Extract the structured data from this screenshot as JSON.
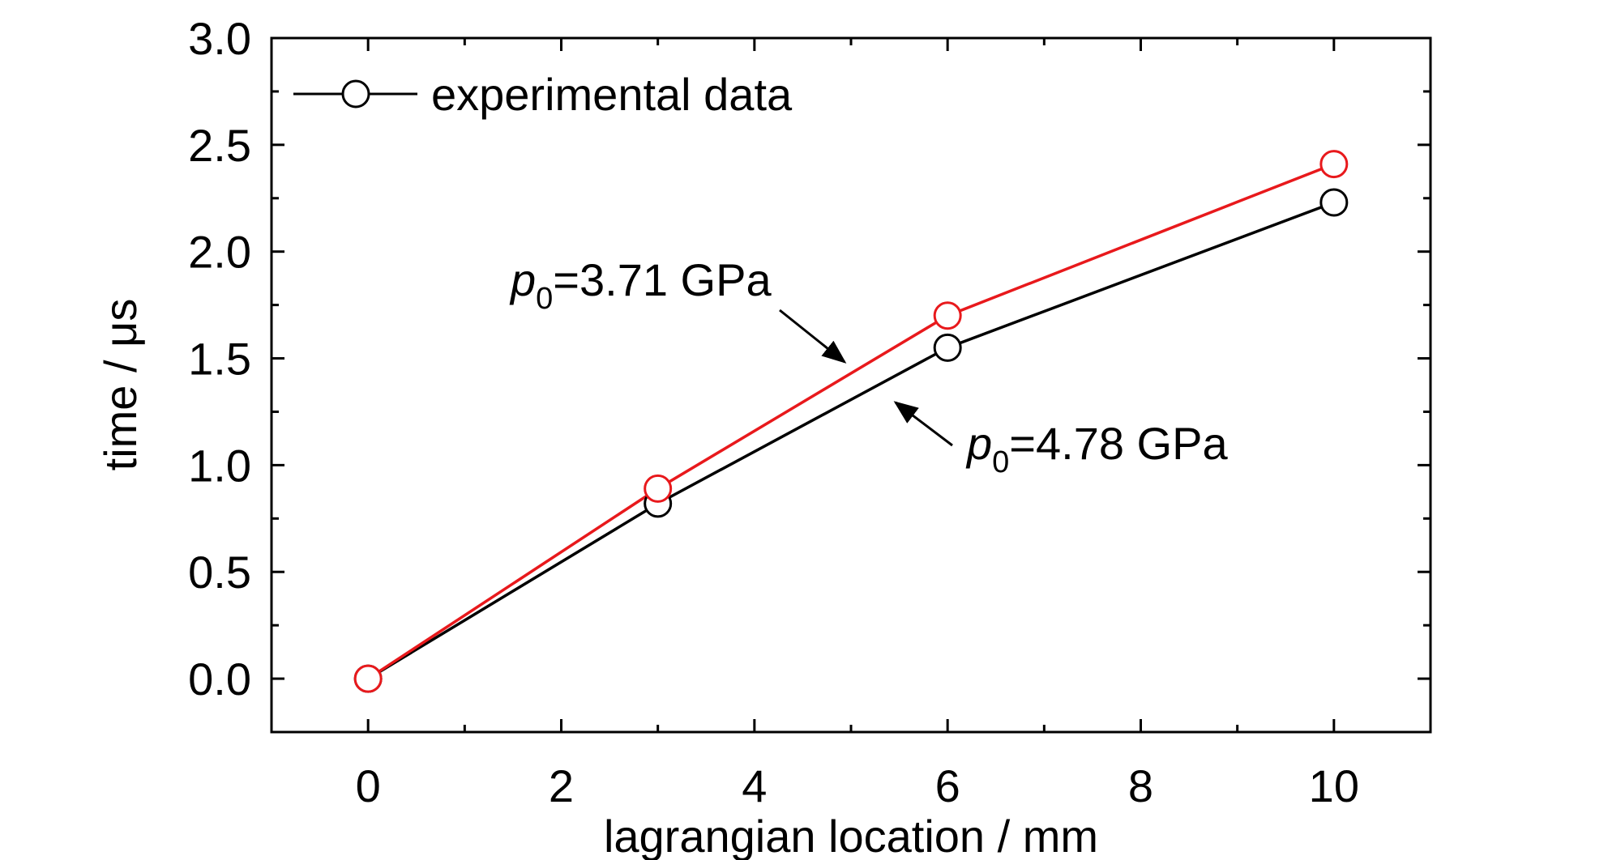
{
  "chart_data": {
    "type": "line",
    "xlabel": "lagrangian location / mm",
    "ylabel": "time / μs",
    "xlim": [
      -1,
      11
    ],
    "ylim": [
      -0.25,
      3.0
    ],
    "xticks": [
      0,
      2,
      4,
      6,
      8,
      10
    ],
    "xtick_labels": [
      "0",
      "2",
      "4",
      "6",
      "8",
      "10"
    ],
    "yticks": [
      0.0,
      0.5,
      1.0,
      1.5,
      2.0,
      2.5,
      3.0
    ],
    "ytick_labels": [
      "0.0",
      "0.5",
      "1.0",
      "1.5",
      "2.0",
      "2.5",
      "3.0"
    ],
    "grid": false,
    "legend": {
      "position": "top-left",
      "entries": [
        "experimental data"
      ]
    },
    "series": [
      {
        "name": "experimental data",
        "color": "#000000",
        "marker": "open-circle",
        "x": [
          0,
          3,
          6,
          10
        ],
        "y": [
          0.0,
          0.82,
          1.55,
          2.23
        ]
      },
      {
        "color": "#e8191c",
        "marker": "open-circle",
        "x": [
          0,
          3,
          6,
          10
        ],
        "y": [
          0.0,
          0.89,
          1.7,
          2.41
        ]
      }
    ],
    "annotations": [
      {
        "var": "p",
        "sub": "0",
        "text": "=3.71 GPa",
        "points_to": {
          "x": 5.0,
          "y": 1.5
        }
      },
      {
        "var": "p",
        "sub": "0",
        "text": "=4.78 GPa",
        "points_to": {
          "x": 5.4,
          "y": 1.34
        }
      }
    ]
  }
}
